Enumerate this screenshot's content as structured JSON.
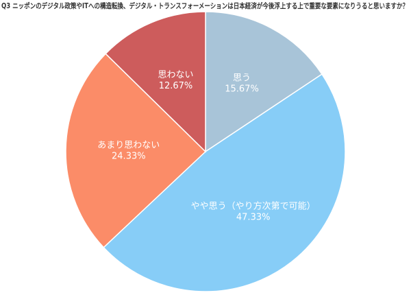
{
  "chart_data": {
    "type": "pie",
    "title": "Q3 ニッポンのデジタル政策やITへの構造転換、デジタル・トランスフォーメーションは日本経済が今後浮上する上で重要な要素になりうると思いますか？",
    "categories": [
      "思う",
      "やや思う（やり方次第で可能）",
      "あまり思わない",
      "思わない"
    ],
    "values": [
      15.67,
      47.33,
      24.33,
      12.67
    ],
    "value_labels": [
      "15.67%",
      "47.33%",
      "24.33%",
      "12.67%"
    ],
    "colors": [
      "#a8c4d8",
      "#87cdf7",
      "#fb8c68",
      "#cd5c5c"
    ]
  }
}
